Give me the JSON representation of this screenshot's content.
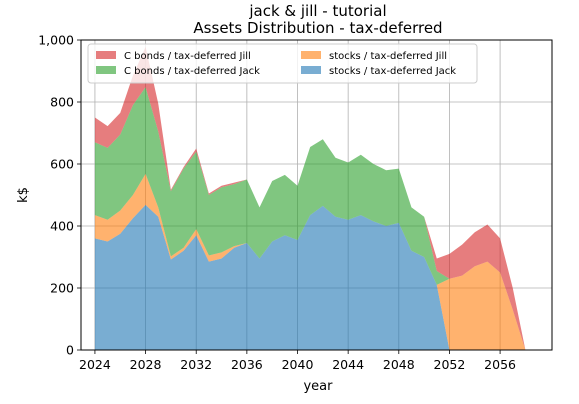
{
  "chart_data": {
    "type": "area",
    "title": "jack & jill - tutorial",
    "subtitle": "Assets Distribution - tax-deferred",
    "xlabel": "year",
    "ylabel": "k$",
    "xlim": [
      2022.9,
      2060.1
    ],
    "ylim": [
      0,
      1000
    ],
    "xticks": [
      2024,
      2028,
      2032,
      2036,
      2040,
      2044,
      2048,
      2052,
      2056
    ],
    "yticks": [
      0,
      200,
      400,
      600,
      800,
      1000
    ],
    "ytick_labels": [
      "0",
      "200",
      "400",
      "600",
      "800",
      "1,000"
    ],
    "grid": true,
    "legend_placement": "top-left",
    "legend_order": [
      "C bonds / tax-deferred Jill",
      "C bonds / tax-deferred Jack",
      "stocks / tax-deferred Jill",
      "stocks / tax-deferred Jack"
    ],
    "x": [
      2024,
      2025,
      2026,
      2027,
      2028,
      2029,
      2030,
      2031,
      2032,
      2033,
      2034,
      2035,
      2036,
      2037,
      2038,
      2039,
      2040,
      2041,
      2042,
      2043,
      2044,
      2045,
      2046,
      2047,
      2048,
      2049,
      2050,
      2051,
      2052,
      2053,
      2054,
      2055,
      2056,
      2057,
      2058
    ],
    "series": [
      {
        "name": "stocks / tax-deferred Jack",
        "color": "#1f77b4",
        "values": [
          360,
          350,
          375,
          425,
          468,
          430,
          292,
          320,
          370,
          285,
          295,
          330,
          345,
          295,
          350,
          370,
          355,
          435,
          465,
          430,
          420,
          435,
          415,
          400,
          410,
          320,
          300,
          210,
          0,
          0,
          0,
          0,
          0,
          0,
          0
        ]
      },
      {
        "name": "stocks / tax-deferred Jill",
        "color": "#ff7f0e",
        "values": [
          75,
          70,
          75,
          75,
          100,
          30,
          10,
          10,
          20,
          20,
          20,
          5,
          0,
          0,
          0,
          0,
          0,
          0,
          0,
          0,
          0,
          0,
          0,
          0,
          0,
          0,
          0,
          0,
          230,
          240,
          270,
          285,
          250,
          130,
          0
        ]
      },
      {
        "name": "C bonds / tax-deferred Jack",
        "color": "#2ca02c",
        "values": [
          235,
          232,
          245,
          290,
          280,
          245,
          210,
          255,
          250,
          195,
          210,
          200,
          205,
          165,
          195,
          195,
          175,
          220,
          215,
          190,
          185,
          195,
          185,
          180,
          175,
          140,
          130,
          45,
          0,
          0,
          0,
          0,
          0,
          0,
          0
        ]
      },
      {
        "name": "C bonds / tax-deferred Jill",
        "color": "#d62728",
        "values": [
          80,
          70,
          70,
          95,
          130,
          90,
          5,
          5,
          10,
          5,
          5,
          5,
          0,
          0,
          0,
          0,
          0,
          0,
          0,
          0,
          0,
          0,
          0,
          0,
          0,
          0,
          0,
          40,
          80,
          100,
          110,
          120,
          110,
          70,
          0
        ]
      }
    ]
  }
}
